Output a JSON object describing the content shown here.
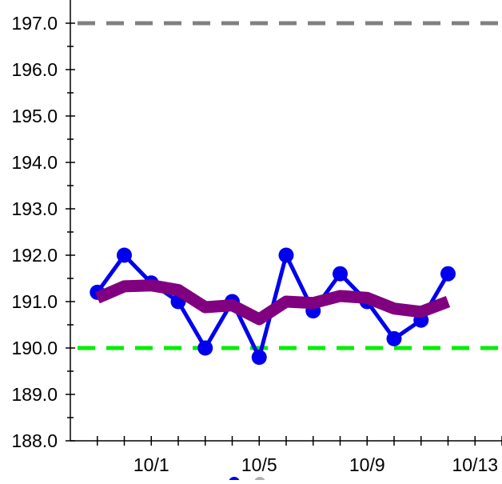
{
  "chart_data": {
    "type": "line",
    "title": "",
    "xlabel": "",
    "ylabel": "",
    "ylim": [
      188.0,
      197.0
    ],
    "y_ticks": [
      "188.0",
      "189.0",
      "190.0",
      "191.0",
      "192.0",
      "193.0",
      "194.0",
      "195.0",
      "196.0",
      "197.0"
    ],
    "x_axis": {
      "type": "date",
      "range": [
        "2023-09-28",
        "2023-10-14"
      ],
      "tick_labels": [
        {
          "date": "2023-10-01",
          "label": "10/1"
        },
        {
          "date": "2023-10-05",
          "label": "10/5"
        },
        {
          "date": "2023-10-09",
          "label": "10/9"
        },
        {
          "date": "2023-10-13",
          "label": "10/13"
        }
      ]
    },
    "series": [
      {
        "style": "line-with-markers",
        "color": "#0000ee",
        "x": [
          "2023-09-29",
          "2023-09-30",
          "2023-10-01",
          "2023-10-02",
          "2023-10-03",
          "2023-10-04",
          "2023-10-05",
          "2023-10-06",
          "2023-10-07",
          "2023-10-08",
          "2023-10-09",
          "2023-10-10",
          "2023-10-11",
          "2023-10-12"
        ],
        "values": [
          191.2,
          192.0,
          191.4,
          191.0,
          190.0,
          191.0,
          189.8,
          192.0,
          190.8,
          191.6,
          191.0,
          190.2,
          190.6,
          191.6
        ]
      },
      {
        "style": "thick-line",
        "color": "#800080",
        "x": [
          "2023-09-29",
          "2023-09-30",
          "2023-10-01",
          "2023-10-02",
          "2023-10-03",
          "2023-10-04",
          "2023-10-05",
          "2023-10-06",
          "2023-10-07",
          "2023-10-08",
          "2023-10-09",
          "2023-10-10",
          "2023-10-11",
          "2023-10-12"
        ],
        "values": [
          191.08,
          191.33,
          191.35,
          191.25,
          190.88,
          190.92,
          190.62,
          191.0,
          190.97,
          191.12,
          191.08,
          190.85,
          190.78,
          191.0
        ]
      }
    ],
    "reference_lines": [
      {
        "value": 197.0,
        "color": "#808080",
        "style": "dashed"
      },
      {
        "value": 190.0,
        "color": "#00ee00",
        "style": "dashed"
      }
    ],
    "grid": false,
    "legend": {
      "placement": "bottom-center",
      "markers": [
        {
          "color": "#0000ee"
        },
        {
          "color": "#b0b0b0"
        }
      ]
    }
  }
}
